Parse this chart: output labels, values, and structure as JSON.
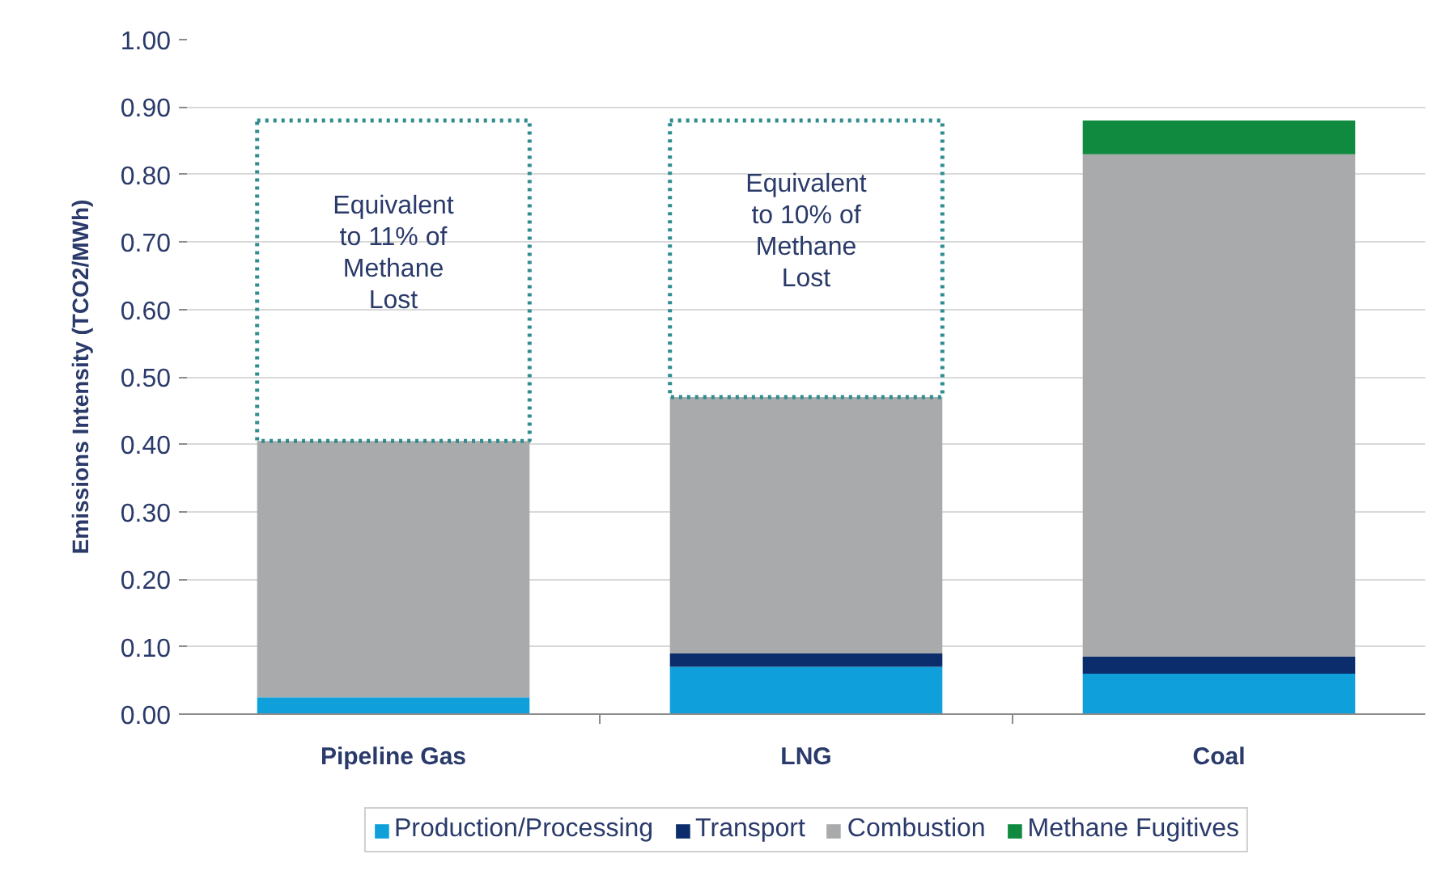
{
  "chart_data": {
    "type": "bar",
    "stacked": true,
    "categories": [
      "Pipeline Gas",
      "LNG",
      "Coal"
    ],
    "series": [
      {
        "name": "Production/Processing",
        "color": "#0fa0dc",
        "values": [
          0.025,
          0.07,
          0.06
        ]
      },
      {
        "name": "Transport",
        "color": "#0b2d6b",
        "values": [
          null,
          0.02,
          0.025
        ]
      },
      {
        "name": "Combustion",
        "color": "#a9aaac",
        "values": [
          0.38,
          0.38,
          0.745
        ]
      },
      {
        "name": "Methane Fugitives",
        "color": "#0f8a3f",
        "values": [
          null,
          null,
          0.05
        ]
      },
      {
        "color": "#2f8c8f",
        "line_style": "dotted",
        "values": [
          0.475,
          0.41,
          null
        ]
      }
    ],
    "ylabel": "Emissions Intensity (TCO2/MWh)",
    "ylim": [
      0,
      1.0
    ],
    "yticks": [
      {
        "value": 0,
        "label": "0.00"
      },
      {
        "value": 0.1,
        "label": "0.10"
      },
      {
        "value": 0.2,
        "label": "0.20"
      },
      {
        "value": 0.3,
        "label": "0.30"
      },
      {
        "value": 0.4,
        "label": "0.40"
      },
      {
        "value": 0.5,
        "label": "0.50"
      },
      {
        "value": 0.6,
        "label": "0.60"
      },
      {
        "value": 0.7,
        "label": "0.70"
      },
      {
        "value": 0.8,
        "label": "0.80"
      },
      {
        "value": 0.9,
        "label": "0.90"
      },
      {
        "value": 1.0,
        "label": "1.00"
      }
    ],
    "grid": "y",
    "legend": "bottom",
    "annotations": [
      "Equivalent\nto 11% of\nMethane\nLost",
      "Equivalent\nto 10% of\nMethane\nLost"
    ]
  }
}
